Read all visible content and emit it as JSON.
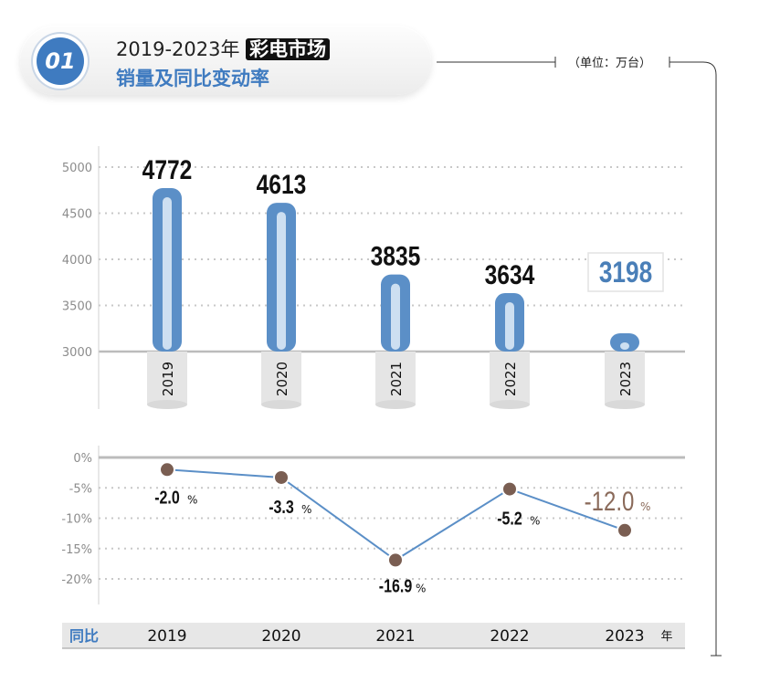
{
  "header": {
    "badge": "01",
    "title_line1": "2019-2023年",
    "title_highlight": "彩电市场",
    "title_line2": "销量及同比变动率",
    "unit": "（单位：万台）"
  },
  "chart_data": [
    {
      "type": "bar",
      "categories": [
        "2019",
        "2020",
        "2021",
        "2022",
        "2023"
      ],
      "values": [
        4772,
        4613,
        3835,
        3634,
        3198
      ],
      "ylim": [
        3000,
        5000
      ],
      "yticks": [
        "5000",
        "4500",
        "4000",
        "3500",
        "3000"
      ],
      "value_labels": [
        "4772",
        "4613",
        "3835",
        "3634",
        "3198"
      ],
      "highlight_last": true,
      "grid": true,
      "colors": {
        "bar": "#5b8fc7",
        "bar_inner": "#cddff1",
        "highlight_text": "#4a7fb8"
      }
    },
    {
      "type": "line",
      "categories": [
        "2019",
        "2020",
        "2021",
        "2022",
        "2023"
      ],
      "values": [
        -2.0,
        -3.3,
        -16.9,
        -5.2,
        -12.0
      ],
      "ylim": [
        -20,
        0
      ],
      "yticks": [
        "0%",
        "-5%",
        "-10%",
        "-15%",
        "-20%"
      ],
      "value_labels": [
        "-2.0",
        "-3.3",
        "-16.9",
        "-5.2",
        "-12.0"
      ],
      "percent_sign": "%",
      "grid": true,
      "row_label": "同比",
      "x_unit": "年",
      "colors": {
        "line": "#5b8fc7",
        "marker": "#7a5e52",
        "highlight_text": "#8a6a5a"
      }
    }
  ]
}
